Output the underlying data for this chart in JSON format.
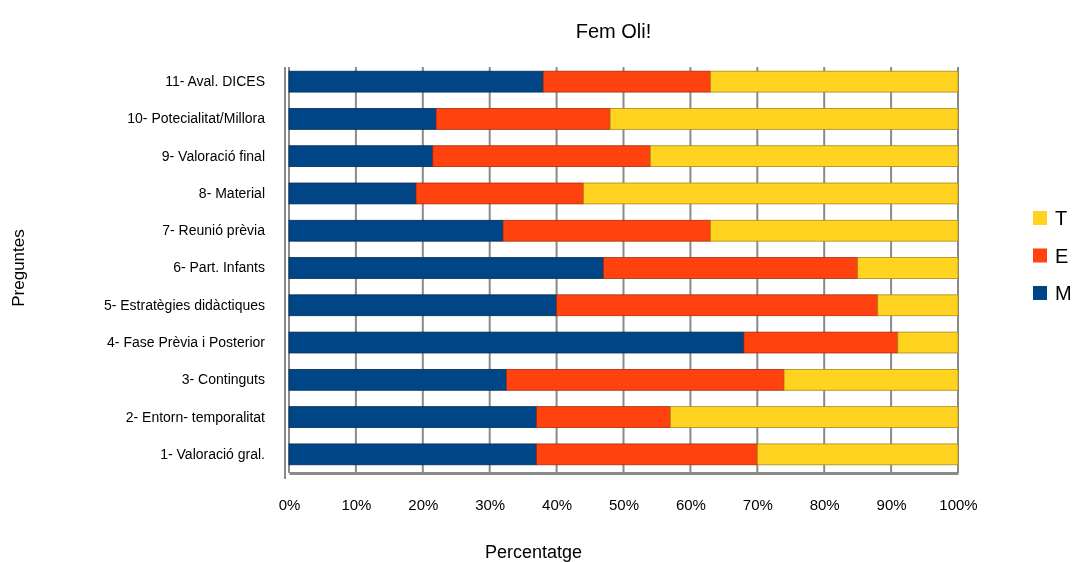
{
  "chart_data": {
    "type": "bar",
    "orientation": "horizontal",
    "stacked": true,
    "title": "Fem Oli!",
    "xlabel": "Percentatge",
    "ylabel": "Preguntes",
    "categories": [
      "11- Aval. DICES",
      "10- Potecialitat/Millora",
      "9- Valoració final",
      "8- Material",
      "7- Reunió prèvia",
      "6- Part. Infants",
      "5- Estratègies didàctiques",
      "4- Fase Prèvia i Posterior",
      "3- Continguts",
      "2- Entorn- temporalitat",
      "1- Valoració gral."
    ],
    "series": [
      {
        "name": "M",
        "color": "#004586",
        "values": [
          38,
          22,
          21.5,
          19,
          32,
          47,
          40,
          68,
          32.5,
          37,
          37
        ]
      },
      {
        "name": "E",
        "color": "#ff420e",
        "values": [
          25,
          26,
          32.5,
          25,
          31,
          38,
          48,
          23,
          41.5,
          20,
          33
        ]
      },
      {
        "name": "T",
        "color": "#ffd320",
        "values": [
          37,
          52,
          46,
          56,
          37,
          15,
          12,
          9,
          26,
          43,
          30
        ]
      }
    ],
    "xlim": [
      0,
      100
    ],
    "xticks": [
      {
        "value": 0,
        "label": "0%"
      },
      {
        "value": 10,
        "label": "10%"
      },
      {
        "value": 20,
        "label": "20%"
      },
      {
        "value": 30,
        "label": "30%"
      },
      {
        "value": 40,
        "label": "40%"
      },
      {
        "value": 50,
        "label": "50%"
      },
      {
        "value": 60,
        "label": "60%"
      },
      {
        "value": 70,
        "label": "70%"
      },
      {
        "value": 80,
        "label": "80%"
      },
      {
        "value": 90,
        "label": "90%"
      },
      {
        "value": 100,
        "label": "100%"
      }
    ],
    "grid": "x",
    "legend": "right"
  }
}
